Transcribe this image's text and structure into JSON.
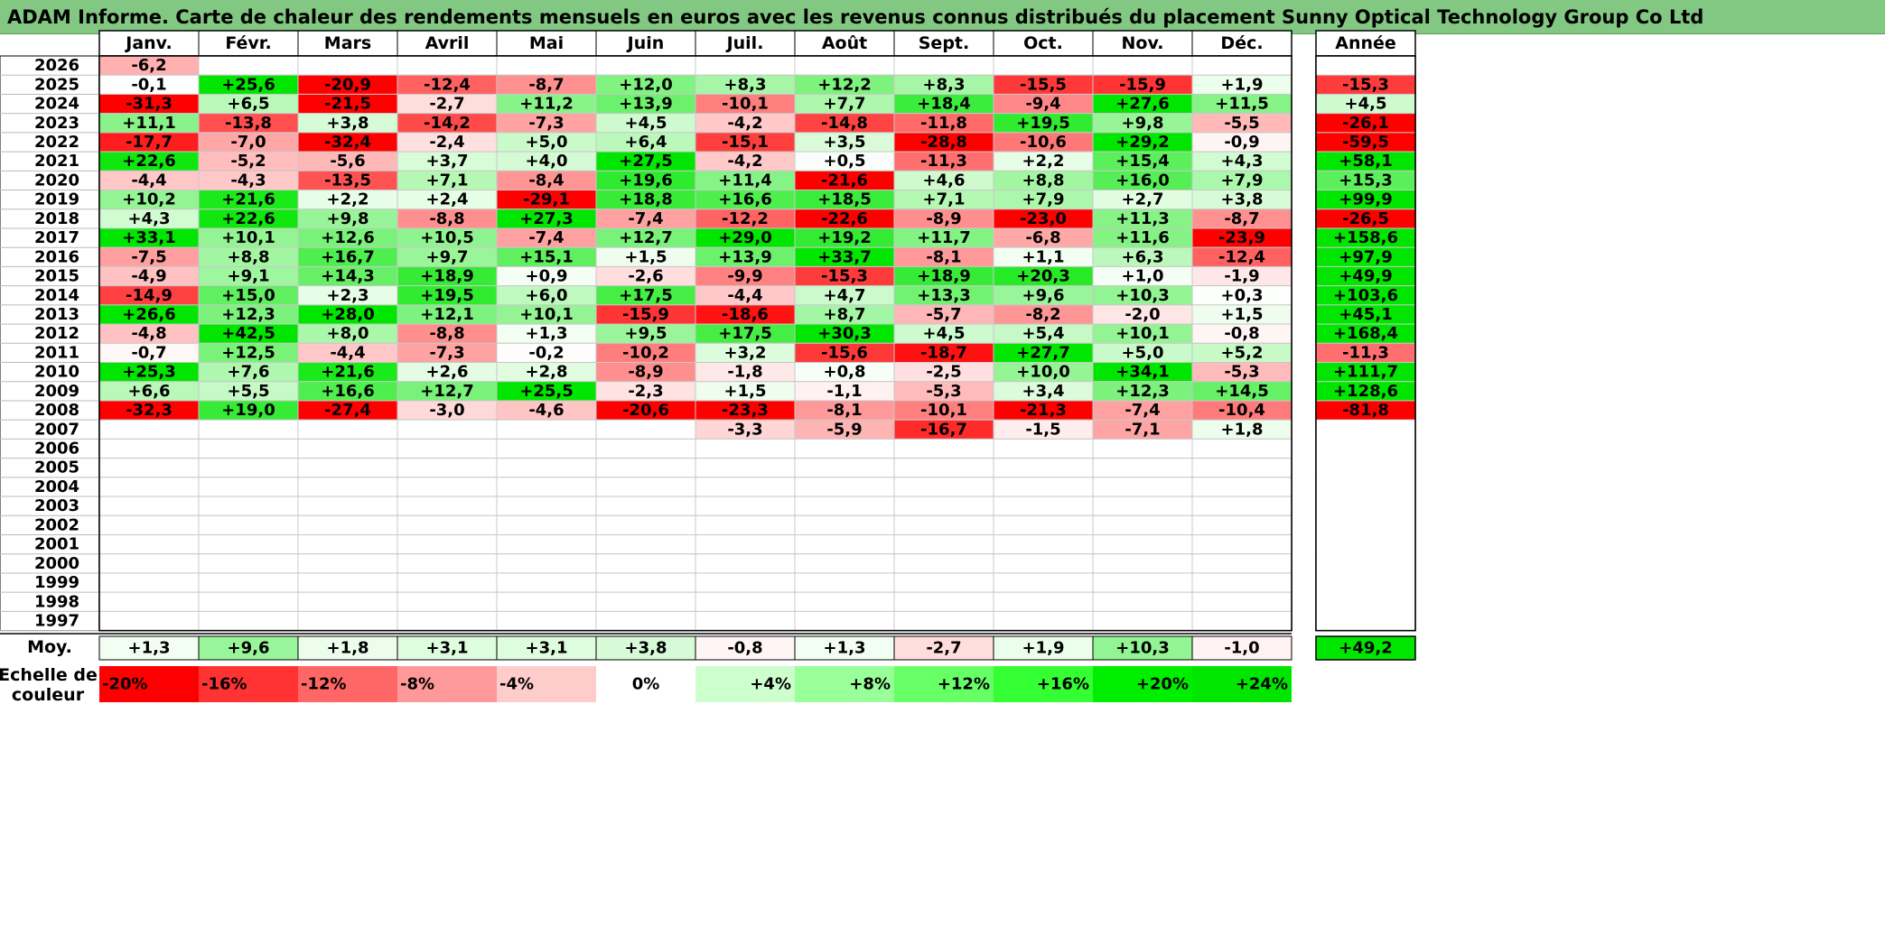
{
  "title": "ADAM Informe. Carte de chaleur des rendements mensuels en euros avec les revenus connus distribués du placement Sunny Optical Technology Group Co Ltd",
  "chart_data": {
    "type": "heatmap",
    "months": [
      "Janv.",
      "Févr.",
      "Mars",
      "Avril",
      "Mai",
      "Juin",
      "Juil.",
      "Août",
      "Sept.",
      "Oct.",
      "Nov.",
      "Déc."
    ],
    "year_header": "Année",
    "rows": [
      {
        "year": "2026",
        "months": [
          "-6,2",
          "",
          "",
          "",
          "",
          "",
          "",
          "",
          "",
          "",
          "",
          ""
        ],
        "annual": ""
      },
      {
        "year": "2025",
        "months": [
          "-0,1",
          "+25,6",
          "-20,9",
          "-12,4",
          "-8,7",
          "+12,0",
          "+8,3",
          "+12,2",
          "+8,3",
          "-15,5",
          "-15,9",
          "+1,9"
        ],
        "annual": "-15,3"
      },
      {
        "year": "2024",
        "months": [
          "-31,3",
          "+6,5",
          "-21,5",
          "-2,7",
          "+11,2",
          "+13,9",
          "-10,1",
          "+7,7",
          "+18,4",
          "-9,4",
          "+27,6",
          "+11,5"
        ],
        "annual": "+4,5"
      },
      {
        "year": "2023",
        "months": [
          "+11,1",
          "-13,8",
          "+3,8",
          "-14,2",
          "-7,3",
          "+4,5",
          "-4,2",
          "-14,8",
          "-11,8",
          "+19,5",
          "+9,8",
          "-5,5"
        ],
        "annual": "-26,1"
      },
      {
        "year": "2022",
        "months": [
          "-17,7",
          "-7,0",
          "-32,4",
          "-2,4",
          "+5,0",
          "+6,4",
          "-15,1",
          "+3,5",
          "-28,8",
          "-10,6",
          "+29,2",
          "-0,9"
        ],
        "annual": "-59,5"
      },
      {
        "year": "2021",
        "months": [
          "+22,6",
          "-5,2",
          "-5,6",
          "+3,7",
          "+4,0",
          "+27,5",
          "-4,2",
          "+0,5",
          "-11,3",
          "+2,2",
          "+15,4",
          "+4,3"
        ],
        "annual": "+58,1"
      },
      {
        "year": "2020",
        "months": [
          "-4,4",
          "-4,3",
          "-13,5",
          "+7,1",
          "-8,4",
          "+19,6",
          "+11,4",
          "-21,6",
          "+4,6",
          "+8,8",
          "+16,0",
          "+7,9"
        ],
        "annual": "+15,3"
      },
      {
        "year": "2019",
        "months": [
          "+10,2",
          "+21,6",
          "+2,2",
          "+2,4",
          "-29,1",
          "+18,8",
          "+16,6",
          "+18,5",
          "+7,1",
          "+7,9",
          "+2,7",
          "+3,8"
        ],
        "annual": "+99,9"
      },
      {
        "year": "2018",
        "months": [
          "+4,3",
          "+22,6",
          "+9,8",
          "-8,8",
          "+27,3",
          "-7,4",
          "-12,2",
          "-22,6",
          "-8,9",
          "-23,0",
          "+11,3",
          "-8,7"
        ],
        "annual": "-26,5"
      },
      {
        "year": "2017",
        "months": [
          "+33,1",
          "+10,1",
          "+12,6",
          "+10,5",
          "-7,4",
          "+12,7",
          "+29,0",
          "+19,2",
          "+11,7",
          "-6,8",
          "+11,6",
          "-23,9"
        ],
        "annual": "+158,6"
      },
      {
        "year": "2016",
        "months": [
          "-7,5",
          "+8,8",
          "+16,7",
          "+9,7",
          "+15,1",
          "+1,5",
          "+13,9",
          "+33,7",
          "-8,1",
          "+1,1",
          "+6,3",
          "-12,4"
        ],
        "annual": "+97,9"
      },
      {
        "year": "2015",
        "months": [
          "-4,9",
          "+9,1",
          "+14,3",
          "+18,9",
          "+0,9",
          "-2,6",
          "-9,9",
          "-15,3",
          "+18,9",
          "+20,3",
          "+1,0",
          "-1,9"
        ],
        "annual": "+49,9"
      },
      {
        "year": "2014",
        "months": [
          "-14,9",
          "+15,0",
          "+2,3",
          "+19,5",
          "+6,0",
          "+17,5",
          "-4,4",
          "+4,7",
          "+13,3",
          "+9,6",
          "+10,3",
          "+0,3"
        ],
        "annual": "+103,6"
      },
      {
        "year": "2013",
        "months": [
          "+26,6",
          "+12,3",
          "+28,0",
          "+12,1",
          "+10,1",
          "-15,9",
          "-18,6",
          "+8,7",
          "-5,7",
          "-8,2",
          "-2,0",
          "+1,5"
        ],
        "annual": "+45,1"
      },
      {
        "year": "2012",
        "months": [
          "-4,8",
          "+42,5",
          "+8,0",
          "-8,8",
          "+1,3",
          "+9,5",
          "+17,5",
          "+30,3",
          "+4,5",
          "+5,4",
          "+10,1",
          "-0,8"
        ],
        "annual": "+168,4"
      },
      {
        "year": "2011",
        "months": [
          "-0,7",
          "+12,5",
          "-4,4",
          "-7,3",
          "-0,2",
          "-10,2",
          "+3,2",
          "-15,6",
          "-18,7",
          "+27,7",
          "+5,0",
          "+5,2"
        ],
        "annual": "-11,3"
      },
      {
        "year": "2010",
        "months": [
          "+25,3",
          "+7,6",
          "+21,6",
          "+2,6",
          "+2,8",
          "-8,9",
          "-1,8",
          "+0,8",
          "-2,5",
          "+10,0",
          "+34,1",
          "-5,3"
        ],
        "annual": "+111,7"
      },
      {
        "year": "2009",
        "months": [
          "+6,6",
          "+5,5",
          "+16,6",
          "+12,7",
          "+25,5",
          "-2,3",
          "+1,5",
          "-1,1",
          "-5,3",
          "+3,4",
          "+12,3",
          "+14,5"
        ],
        "annual": "+128,6"
      },
      {
        "year": "2008",
        "months": [
          "-32,3",
          "+19,0",
          "-27,4",
          "-3,0",
          "-4,6",
          "-20,6",
          "-23,3",
          "-8,1",
          "-10,1",
          "-21,3",
          "-7,4",
          "-10,4"
        ],
        "annual": "-81,8"
      },
      {
        "year": "2007",
        "months": [
          "",
          "",
          "",
          "",
          "",
          "",
          "-3,3",
          "-5,9",
          "-16,7",
          "-1,5",
          "-7,1",
          "+1,8"
        ],
        "annual": ""
      },
      {
        "year": "2006",
        "months": [
          "",
          "",
          "",
          "",
          "",
          "",
          "",
          "",
          "",
          "",
          "",
          ""
        ],
        "annual": ""
      },
      {
        "year": "2005",
        "months": [
          "",
          "",
          "",
          "",
          "",
          "",
          "",
          "",
          "",
          "",
          "",
          ""
        ],
        "annual": ""
      },
      {
        "year": "2004",
        "months": [
          "",
          "",
          "",
          "",
          "",
          "",
          "",
          "",
          "",
          "",
          "",
          ""
        ],
        "annual": ""
      },
      {
        "year": "2003",
        "months": [
          "",
          "",
          "",
          "",
          "",
          "",
          "",
          "",
          "",
          "",
          "",
          ""
        ],
        "annual": ""
      },
      {
        "year": "2002",
        "months": [
          "",
          "",
          "",
          "",
          "",
          "",
          "",
          "",
          "",
          "",
          "",
          ""
        ],
        "annual": ""
      },
      {
        "year": "2001",
        "months": [
          "",
          "",
          "",
          "",
          "",
          "",
          "",
          "",
          "",
          "",
          "",
          ""
        ],
        "annual": ""
      },
      {
        "year": "2000",
        "months": [
          "",
          "",
          "",
          "",
          "",
          "",
          "",
          "",
          "",
          "",
          "",
          ""
        ],
        "annual": ""
      },
      {
        "year": "1999",
        "months": [
          "",
          "",
          "",
          "",
          "",
          "",
          "",
          "",
          "",
          "",
          "",
          ""
        ],
        "annual": ""
      },
      {
        "year": "1998",
        "months": [
          "",
          "",
          "",
          "",
          "",
          "",
          "",
          "",
          "",
          "",
          "",
          ""
        ],
        "annual": ""
      },
      {
        "year": "1997",
        "months": [
          "",
          "",
          "",
          "",
          "",
          "",
          "",
          "",
          "",
          "",
          "",
          ""
        ],
        "annual": ""
      }
    ],
    "average": {
      "label": "Moy.",
      "months": [
        "+1,3",
        "+9,6",
        "+1,8",
        "+3,1",
        "+3,1",
        "+3,8",
        "-0,8",
        "+1,3",
        "-2,7",
        "+1,9",
        "+10,3",
        "-1,0"
      ],
      "annual": "+49,2"
    },
    "scale": {
      "label_line1": "Echelle de",
      "label_line2": "couleur",
      "items": [
        {
          "label": "-20%",
          "color": "#ff0000"
        },
        {
          "label": "-16%",
          "color": "#ff3333"
        },
        {
          "label": "-12%",
          "color": "#ff6666"
        },
        {
          "label": "-8%",
          "color": "#ff9999"
        },
        {
          "label": "-4%",
          "color": "#ffcccc"
        },
        {
          "label": "0%",
          "color": "#ffffff"
        },
        {
          "label": "+4%",
          "color": "#ccffcc"
        },
        {
          "label": "+8%",
          "color": "#99ff99"
        },
        {
          "label": "+12%",
          "color": "#66ff66"
        },
        {
          "label": "+16%",
          "color": "#33ff33"
        },
        {
          "label": "+20%",
          "color": "#00ee00"
        },
        {
          "label": "+24%",
          "color": "#00e600"
        }
      ]
    },
    "colors": {
      "negative": "#ff0000",
      "positive": "#00e600",
      "neutral": "#ffffff",
      "title_bg": "#82c882"
    }
  }
}
